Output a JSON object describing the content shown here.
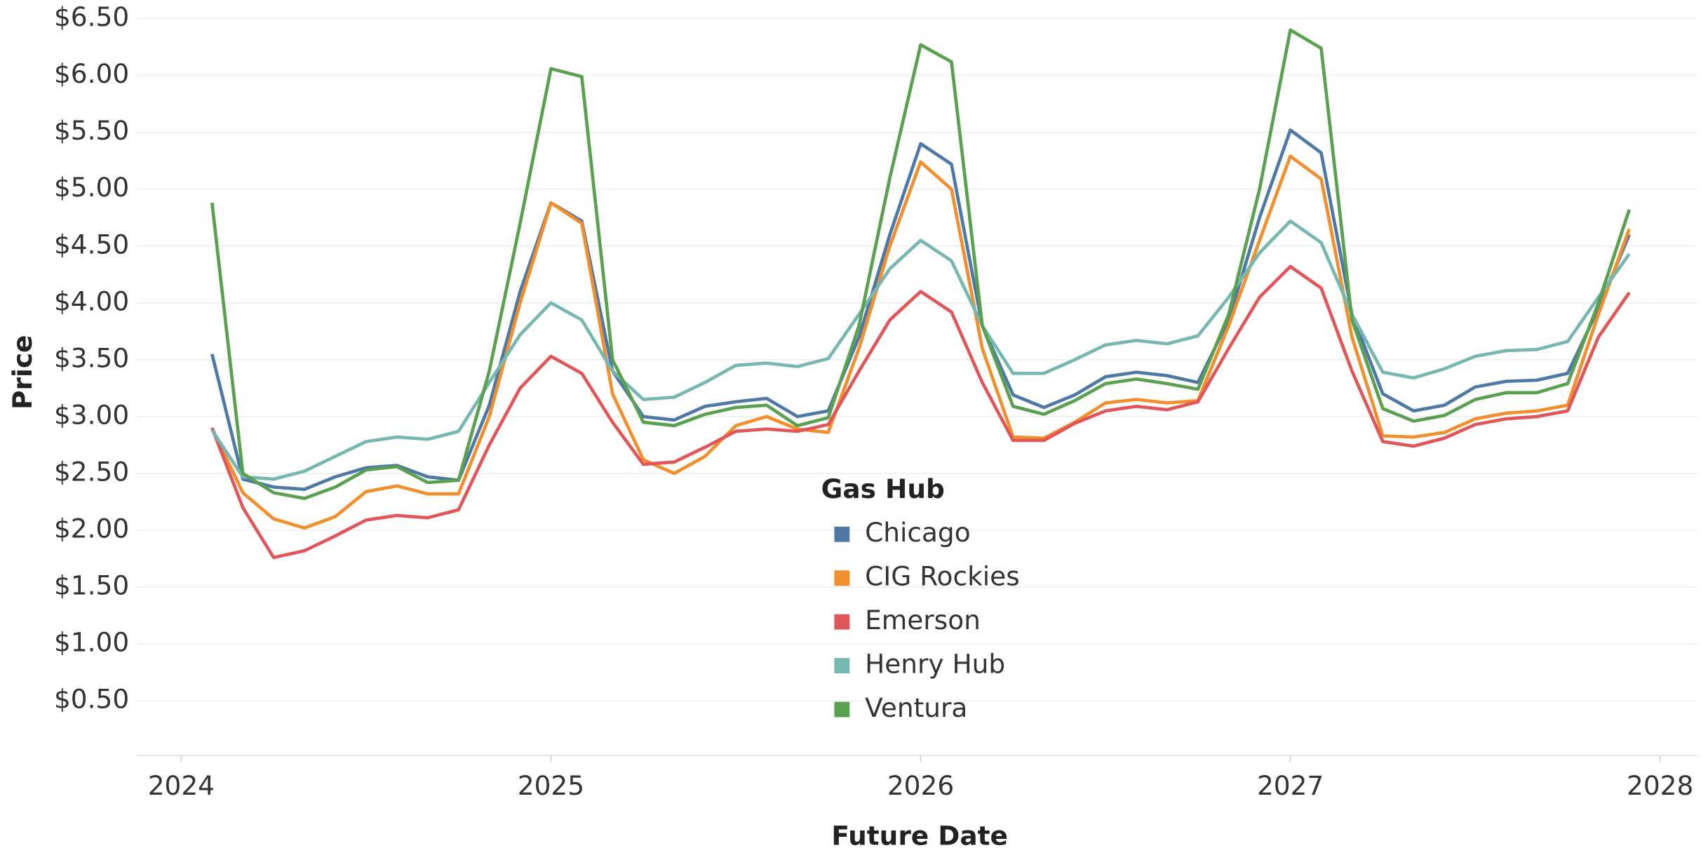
{
  "chart_data": {
    "type": "line",
    "xlabel": "Future Date",
    "ylabel": "Price",
    "legend_title": "Gas Hub",
    "legend": "center",
    "x": [
      "2024-02",
      "2024-03",
      "2024-04",
      "2024-05",
      "2024-06",
      "2024-07",
      "2024-08",
      "2024-09",
      "2024-10",
      "2024-11",
      "2024-12",
      "2025-01",
      "2025-02",
      "2025-03",
      "2025-04",
      "2025-05",
      "2025-06",
      "2025-07",
      "2025-08",
      "2025-09",
      "2025-10",
      "2025-11",
      "2025-12",
      "2026-01",
      "2026-02",
      "2026-03",
      "2026-04",
      "2026-05",
      "2026-06",
      "2026-07",
      "2026-08",
      "2026-09",
      "2026-10",
      "2026-11",
      "2026-12",
      "2027-01",
      "2027-02",
      "2027-03",
      "2027-04",
      "2027-05",
      "2027-06",
      "2027-07",
      "2027-08",
      "2027-09",
      "2027-10",
      "2027-11",
      "2027-12"
    ],
    "series": [
      {
        "name": "Chicago",
        "color": "#4e79a7",
        "values": [
          3.55,
          2.45,
          2.38,
          2.36,
          2.47,
          2.55,
          2.57,
          2.47,
          2.44,
          3.1,
          4.1,
          4.88,
          4.72,
          3.4,
          3.0,
          2.97,
          3.09,
          3.13,
          3.16,
          3.0,
          3.05,
          3.7,
          4.6,
          5.4,
          5.22,
          3.8,
          3.19,
          3.08,
          3.19,
          3.35,
          3.39,
          3.36,
          3.3,
          3.85,
          4.75,
          5.52,
          5.32,
          3.9,
          3.2,
          3.05,
          3.1,
          3.26,
          3.31,
          3.32,
          3.38,
          3.95,
          4.6
        ]
      },
      {
        "name": "CIG Rockies",
        "color": "#f28e2b",
        "values": [
          2.9,
          2.33,
          2.1,
          2.02,
          2.12,
          2.34,
          2.39,
          2.32,
          2.32,
          3.0,
          4.0,
          4.88,
          4.7,
          3.2,
          2.62,
          2.5,
          2.65,
          2.92,
          3.0,
          2.89,
          2.86,
          3.6,
          4.5,
          5.24,
          5.0,
          3.6,
          2.82,
          2.81,
          2.95,
          3.12,
          3.15,
          3.12,
          3.14,
          3.8,
          4.55,
          5.29,
          5.09,
          3.7,
          2.83,
          2.82,
          2.86,
          2.98,
          3.03,
          3.05,
          3.1,
          3.9,
          4.65
        ]
      },
      {
        "name": "Emerson",
        "color": "#e15759",
        "values": [
          2.9,
          2.2,
          1.76,
          1.82,
          1.95,
          2.09,
          2.13,
          2.11,
          2.18,
          2.75,
          3.25,
          3.53,
          3.38,
          2.95,
          2.58,
          2.6,
          2.73,
          2.87,
          2.89,
          2.87,
          2.93,
          3.4,
          3.85,
          4.1,
          3.92,
          3.3,
          2.79,
          2.79,
          2.94,
          3.05,
          3.09,
          3.06,
          3.13,
          3.6,
          4.05,
          4.32,
          4.13,
          3.4,
          2.78,
          2.74,
          2.81,
          2.93,
          2.98,
          3.0,
          3.05,
          3.7,
          4.09
        ]
      },
      {
        "name": "Henry Hub",
        "color": "#76b7b2",
        "values": [
          2.88,
          2.47,
          2.45,
          2.52,
          2.65,
          2.78,
          2.82,
          2.8,
          2.87,
          3.3,
          3.72,
          4.0,
          3.85,
          3.4,
          3.15,
          3.17,
          3.3,
          3.45,
          3.47,
          3.44,
          3.51,
          3.9,
          4.3,
          4.55,
          4.37,
          3.8,
          3.38,
          3.38,
          3.5,
          3.63,
          3.67,
          3.64,
          3.71,
          4.05,
          4.44,
          4.72,
          4.53,
          3.9,
          3.39,
          3.34,
          3.42,
          3.53,
          3.58,
          3.59,
          3.66,
          4.05,
          4.43
        ]
      },
      {
        "name": "Ventura",
        "color": "#59a14f",
        "values": [
          4.88,
          2.5,
          2.33,
          2.28,
          2.38,
          2.53,
          2.56,
          2.42,
          2.44,
          3.4,
          4.7,
          6.06,
          5.99,
          3.5,
          2.95,
          2.92,
          3.02,
          3.08,
          3.1,
          2.92,
          2.99,
          3.8,
          5.1,
          6.27,
          6.12,
          3.8,
          3.09,
          3.02,
          3.14,
          3.29,
          3.33,
          3.29,
          3.24,
          3.9,
          5.0,
          6.4,
          6.24,
          3.85,
          3.07,
          2.96,
          3.01,
          3.15,
          3.21,
          3.21,
          3.29,
          4.0,
          4.82
        ]
      }
    ],
    "xlim": [
      2023.88,
      2028.1
    ],
    "xticks": [
      2024,
      2025,
      2026,
      2027,
      2028
    ],
    "ylim": [
      0,
      6.5
    ],
    "yticks": [
      {
        "value": 0.5,
        "label": "$0.50"
      },
      {
        "value": 1,
        "label": "$1.00"
      },
      {
        "value": 1.5,
        "label": "$1.50"
      },
      {
        "value": 2,
        "label": "$2.00"
      },
      {
        "value": 2.5,
        "label": "$2.50"
      },
      {
        "value": 3,
        "label": "$3.00"
      },
      {
        "value": 3.5,
        "label": "$3.50"
      },
      {
        "value": 4,
        "label": "$4.00"
      },
      {
        "value": 4.5,
        "label": "$4.50"
      },
      {
        "value": 5,
        "label": "$5.00"
      },
      {
        "value": 5.5,
        "label": "$5.50"
      },
      {
        "value": 6,
        "label": "$6.00"
      },
      {
        "value": 6.5,
        "label": "$6.50"
      }
    ],
    "grid": true
  }
}
